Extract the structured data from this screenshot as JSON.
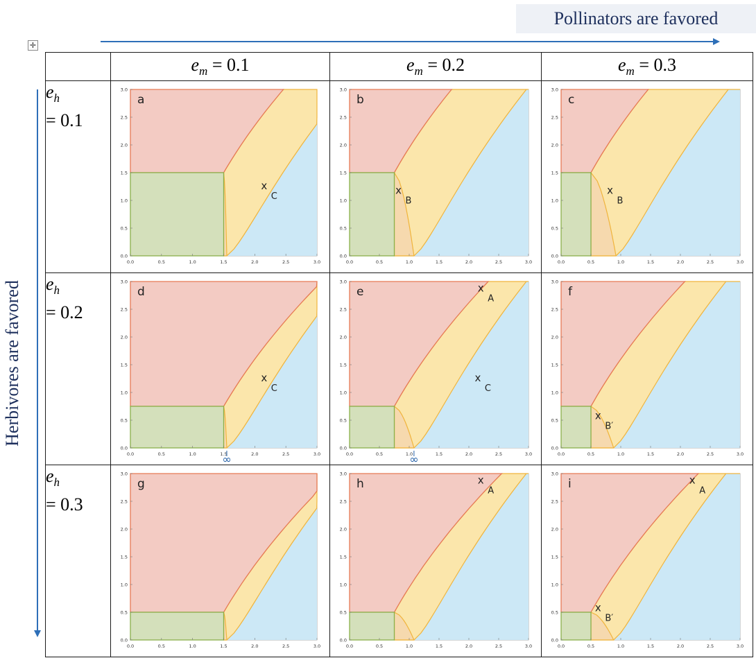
{
  "top_caption": "Pollinators are favored",
  "side_caption": "Herbivores are favored",
  "columns": [
    {
      "label": "= 0.1",
      "em": 0.1
    },
    {
      "label": "= 0.2",
      "em": 0.2
    },
    {
      "label": "= 0.3",
      "em": 0.3
    }
  ],
  "rows": [
    {
      "label": "= 0.1",
      "eh": 0.1
    },
    {
      "label": "= 0.2",
      "eh": 0.2
    },
    {
      "label": "= 0.3",
      "eh": 0.3
    }
  ],
  "colors": {
    "red_fill": "#f3cbc3",
    "red_line": "#e67a55",
    "green_fill": "#d4e0bb",
    "green_line": "#8ab04a",
    "yellow_fill": "#fbe6ab",
    "yellow_line": "#f0b43c",
    "blue_fill": "#cce8f6",
    "text_blue": "#2460a7",
    "caption_bg": "#eef1f6"
  },
  "ticks": [
    "0.0",
    "0.5",
    "1.0",
    "1.5",
    "2.0",
    "2.5",
    "3.0"
  ],
  "panels": [
    {
      "id": "a",
      "h": 1.5,
      "v": 1.5,
      "u": 1.55,
      "markers": [
        {
          "sym": "x",
          "label": "C",
          "x": 2.15,
          "y": 1.2
        }
      ]
    },
    {
      "id": "b",
      "h": 1.5,
      "v": 0.75,
      "u": 1.08,
      "markers": [
        {
          "sym": "x",
          "label": "B",
          "x": 0.82,
          "y": 1.12
        }
      ]
    },
    {
      "id": "c",
      "h": 1.5,
      "v": 0.5,
      "u": 0.92,
      "markers": [
        {
          "sym": "x",
          "label": "B",
          "x": 0.82,
          "y": 1.12
        }
      ]
    },
    {
      "id": "d",
      "h": 0.75,
      "v": 1.5,
      "u": 1.55,
      "markers": [
        {
          "sym": "x",
          "label": "C",
          "x": 2.15,
          "y": 1.2
        }
      ],
      "infinity_x": 1.55
    },
    {
      "id": "e",
      "h": 0.75,
      "v": 0.75,
      "u": 1.08,
      "markers": [
        {
          "sym": "x",
          "label": "A",
          "x": 2.2,
          "y": 2.82
        },
        {
          "sym": "x",
          "label": "C",
          "x": 2.15,
          "y": 1.2
        }
      ],
      "infinity_x": 1.08
    },
    {
      "id": "f",
      "h": 0.75,
      "v": 0.5,
      "u": 0.88,
      "markers": [
        {
          "sym": "x",
          "label": "B′",
          "x": 0.62,
          "y": 0.52
        }
      ]
    },
    {
      "id": "g",
      "h": 0.5,
      "v": 1.5,
      "u": 1.55,
      "markers": []
    },
    {
      "id": "h",
      "h": 0.5,
      "v": 0.75,
      "u": 1.08,
      "markers": [
        {
          "sym": "x",
          "label": "A",
          "x": 2.2,
          "y": 2.82
        }
      ]
    },
    {
      "id": "i",
      "h": 0.5,
      "v": 0.5,
      "u": 0.88,
      "markers": [
        {
          "sym": "x",
          "label": "A",
          "x": 2.2,
          "y": 2.82
        },
        {
          "sym": "x",
          "label": "B′",
          "x": 0.62,
          "y": 0.52
        }
      ]
    }
  ],
  "symbols": {
    "infinity": "∞"
  }
}
